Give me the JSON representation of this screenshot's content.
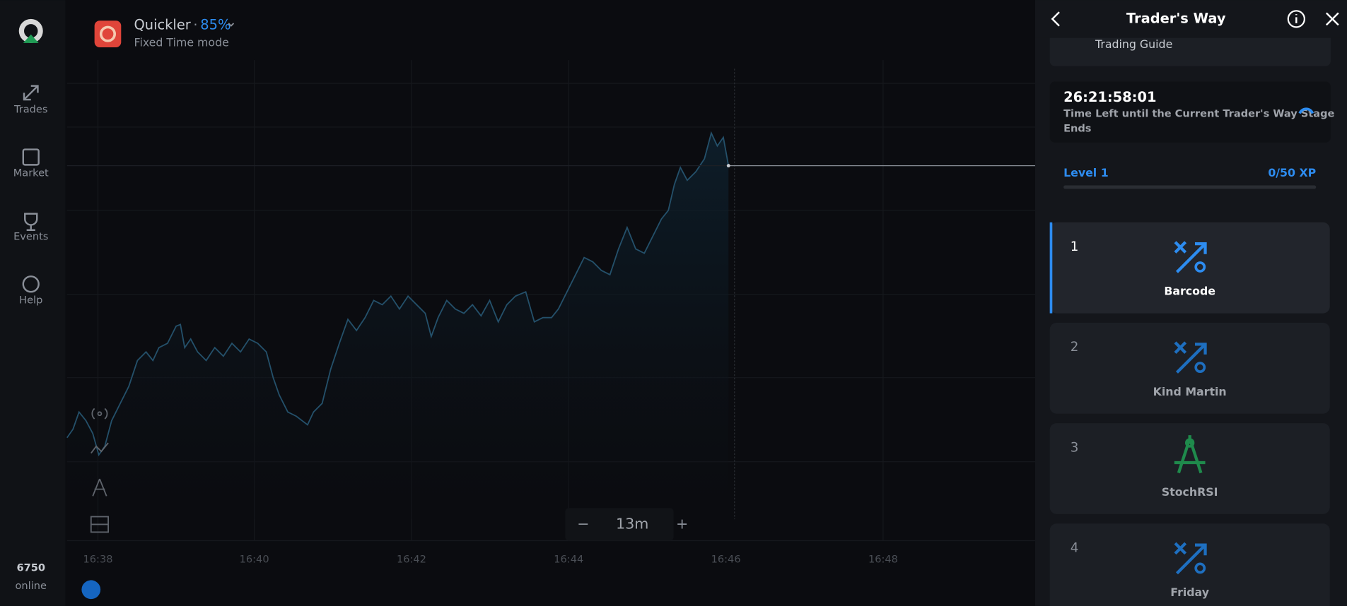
{
  "header": {
    "title": "Quickler",
    "separator": "·",
    "payout": "85%",
    "mode": "Fixed Time mode"
  },
  "sidebar": {
    "items": [
      "Trades",
      "Market",
      "Events",
      "Help"
    ],
    "online_count": "6750",
    "online_label": "online"
  },
  "chart": {
    "x_labels": [
      "16:38",
      "16:40",
      "16:42",
      "16:44",
      "16:46",
      "16:48"
    ],
    "minus": "−",
    "timeframe": "13m",
    "plus": "+"
  },
  "panel": {
    "title": "Trader's Way",
    "guide": "Trading Guide",
    "timer": "26:21:58:01",
    "timer_text_1": "Time Left until the Current Trader's Way Stage",
    "timer_text_2": "Ends",
    "level": "Level 1",
    "xp": "0/50 XP",
    "stages": [
      {
        "number": 1,
        "name": "Barcode"
      },
      {
        "number": 2,
        "name": "Kind Martin"
      },
      {
        "number": 3,
        "name": "StochRSI"
      },
      {
        "number": 4,
        "name": "Friday"
      }
    ]
  }
}
